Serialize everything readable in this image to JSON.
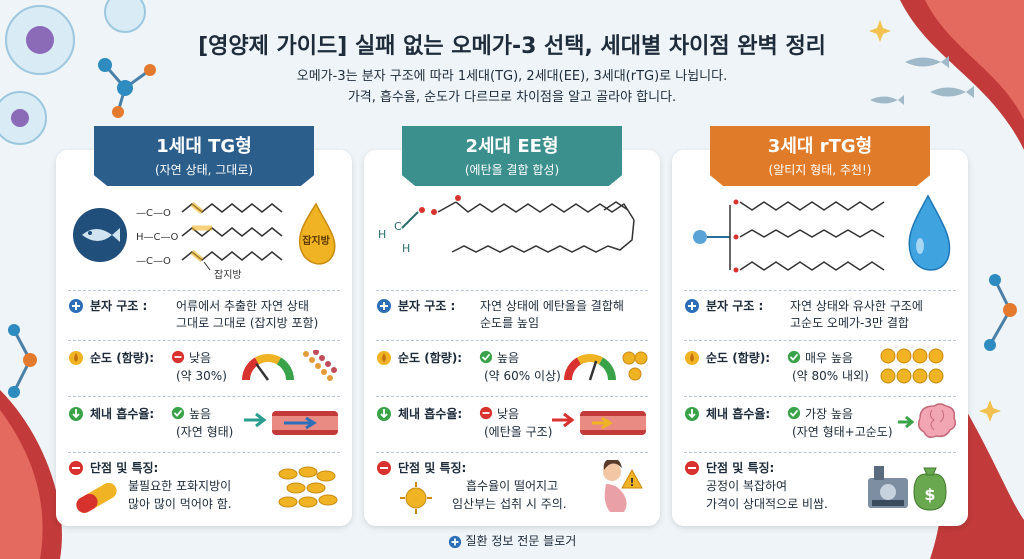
{
  "header": {
    "title": "[영양제 가이드] 실패 없는 오메가-3 선택, 세대별 차이점 완벽 정리",
    "subtitle_line1": "오메가-3는 분자 구조에 따라 1세대(TG), 2세대(EE), 3세대(rTG)로 나뉩니다.",
    "subtitle_line2": "가격, 흡수율, 순도가 다르므로 차이점을 알고 골라야 합니다."
  },
  "cards": [
    {
      "heading": "1세대 TG형",
      "sub": "(자연 상태, 그대로)",
      "ribbon_color": "#2c5e8c",
      "badge_label": "잡지방",
      "impurity_label": "잡지방",
      "structure_label": "분자 구조 :",
      "structure_line1": "어류에서 추출한 자연 상태",
      "structure_line2": "그대로 그대로 (잡지방 포함)",
      "purity_label": "순도 (함량):",
      "purity_value": "낮음",
      "purity_detail": "(약 30%)",
      "purity_level": 0.3,
      "absorb_label": "체내 흡수율:",
      "absorb_value": "높음",
      "absorb_detail": "(자연 형태)",
      "feature_label": "단점 및 특징:",
      "feature_line1": "불필요한 포화지방이",
      "feature_line2": "많아 많이 먹어야 함."
    },
    {
      "heading": "2세대 EE형",
      "sub": "(에탄올 결합 합성)",
      "ribbon_color": "#3b8f8c",
      "structure_label": "분자 구조 :",
      "structure_line1": "자연 상태에 에탄올을 결합해",
      "structure_line2": "순도를 높임",
      "purity_label": "순도 (함량):",
      "purity_value": "높음",
      "purity_detail": "(약 60% 이상)",
      "purity_level": 0.6,
      "absorb_label": "체내 흡수율:",
      "absorb_value": "낮음",
      "absorb_detail": "(에탄올 구조)",
      "feature_label": "단점 및 특징:",
      "feature_line1": "흡수율이 떨어지고",
      "feature_line2": "임산부는 섭취 시 주의."
    },
    {
      "heading": "3세대 rTG형",
      "sub": "(알티지 형태, 추천!)",
      "ribbon_color": "#e07b2a",
      "structure_label": "분자 구조 :",
      "structure_line1": "자연 상태와 유사한 구조에",
      "structure_line2": "고순도 오메가-3만 결합",
      "purity_label": "순도 (함량):",
      "purity_value": "매우 높음",
      "purity_detail": "(약 80% 내외)",
      "purity_level": 0.8,
      "absorb_label": "체내 흡수율:",
      "absorb_value": "가장 높음",
      "absorb_detail": "(자연 형태+고순도)",
      "feature_label": "단점 및 특징:",
      "feature_line1": "공정이 복잡하여",
      "feature_line2": "가격이 상대적으로 비쌈."
    }
  ],
  "footer": {
    "text": "질환 정보 전문 블로거"
  },
  "colors": {
    "good": "#3aa34a",
    "bad": "#d8322f",
    "info": "#2c6fb8",
    "gold": "#f0b323",
    "text": "#1d2b3a"
  }
}
